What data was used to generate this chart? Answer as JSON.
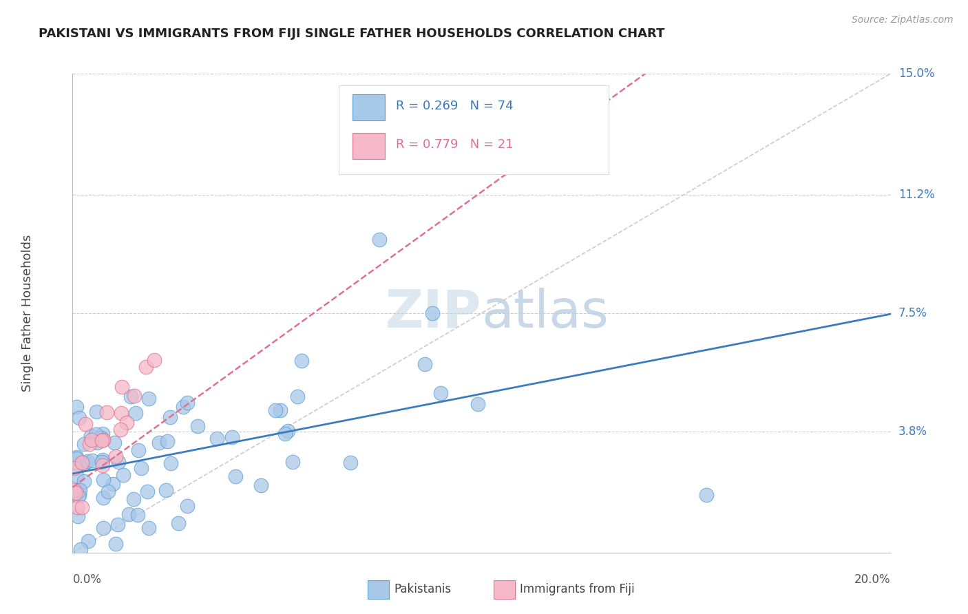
{
  "title": "PAKISTANI VS IMMIGRANTS FROM FIJI SINGLE FATHER HOUSEHOLDS CORRELATION CHART",
  "source": "Source: ZipAtlas.com",
  "ylabel": "Single Father Households",
  "xlim": [
    0.0,
    0.2
  ],
  "ylim": [
    0.0,
    0.15
  ],
  "right_yticks": [
    0.038,
    0.075,
    0.112,
    0.15
  ],
  "right_ytick_labels": [
    "3.8%",
    "7.5%",
    "11.2%",
    "15.0%"
  ],
  "r_pakistani": 0.269,
  "n_pakistani": 74,
  "r_fiji": 0.779,
  "n_fiji": 21,
  "color_pakistani_fill": "#a8c8e8",
  "color_pakistani_edge": "#5a9fd4",
  "color_fiji_fill": "#f5b8c8",
  "color_fiji_edge": "#e07090",
  "color_line_pakistani": "#3a7abf",
  "color_line_fiji": "#e07090",
  "color_ref_line": "#cccccc",
  "color_grid": "#cccccc",
  "watermark_color": "#dde8f0",
  "legend_label_1": "Pakistanis",
  "legend_label_2": "Immigrants from Fiji",
  "title_fontsize": 13,
  "source_fontsize": 10,
  "axis_label_fontsize": 12,
  "legend_fontsize": 13,
  "ytick_fontsize": 12,
  "watermark_fontsize": 55
}
